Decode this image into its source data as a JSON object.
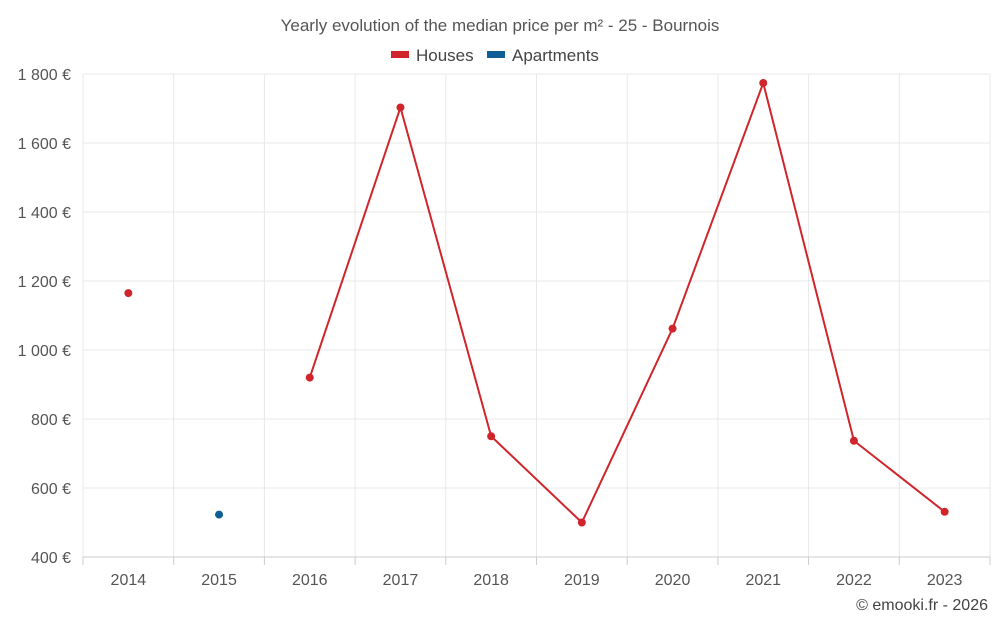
{
  "chart_data": {
    "type": "line",
    "title": "Yearly evolution of the median price per m² - 25 - Bournois",
    "categories": [
      "2014",
      "2015",
      "2016",
      "2017",
      "2018",
      "2019",
      "2020",
      "2021",
      "2022",
      "2023"
    ],
    "series": [
      {
        "name": "Houses",
        "color": "#d0262b",
        "values": [
          1165,
          null,
          920,
          1703,
          750,
          500,
          1062,
          1774,
          737,
          531
        ]
      },
      {
        "name": "Apartments",
        "color": "#0e5f96",
        "values": [
          null,
          523,
          null,
          null,
          null,
          null,
          null,
          null,
          null,
          null
        ]
      }
    ],
    "ylim": [
      400,
      1800
    ],
    "yticks": [
      400,
      600,
      800,
      1000,
      1200,
      1400,
      1600,
      1800
    ],
    "ytick_labels": [
      "400 €",
      "600 €",
      "800 €",
      "1 000 €",
      "1 200 €",
      "1 400 €",
      "1 600 €",
      "1 800 €"
    ],
    "xlabel": "",
    "ylabel": "",
    "grid": true,
    "legend_position": "top-center",
    "credit": "© emooki.fr - 2026"
  }
}
